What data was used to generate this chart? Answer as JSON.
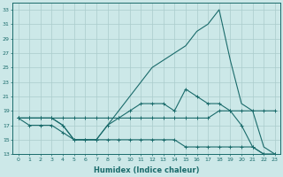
{
  "xlabel": "Humidex (Indice chaleur)",
  "x": [
    0,
    1,
    2,
    3,
    4,
    5,
    6,
    7,
    8,
    9,
    10,
    11,
    12,
    13,
    14,
    15,
    16,
    17,
    18,
    19,
    20,
    21,
    22,
    23
  ],
  "line_max": [
    18,
    18,
    18,
    18,
    17,
    15,
    15,
    15,
    17,
    19,
    21,
    23,
    25,
    26,
    27,
    28,
    30,
    31,
    33,
    26,
    20,
    19,
    14,
    13
  ],
  "line_mid": [
    18,
    18,
    18,
    18,
    17,
    15,
    15,
    15,
    17,
    18,
    19,
    20,
    20,
    20,
    19,
    22,
    21,
    20,
    20,
    19,
    17,
    14,
    13,
    13
  ],
  "line_avg": [
    18,
    18,
    18,
    18,
    18,
    18,
    18,
    18,
    18,
    18,
    18,
    18,
    18,
    18,
    18,
    18,
    18,
    18,
    19,
    19,
    19,
    19,
    19,
    19
  ],
  "line_min": [
    18,
    17,
    17,
    17,
    16,
    15,
    15,
    15,
    15,
    15,
    15,
    15,
    15,
    15,
    15,
    14,
    14,
    14,
    14,
    14,
    14,
    14,
    13,
    13
  ],
  "color": "#1a6b6b",
  "bg_color": "#cce8e8",
  "grid_color": "#aacccc",
  "ylim": [
    13,
    34
  ],
  "yticks": [
    13,
    15,
    17,
    19,
    21,
    23,
    25,
    27,
    29,
    31,
    33
  ],
  "xlim": [
    -0.5,
    23.5
  ],
  "marker_x_mid": [
    0,
    1,
    2,
    3,
    4,
    5,
    6,
    7,
    8,
    9,
    10,
    11,
    12,
    13,
    14,
    15,
    16,
    17,
    18,
    19,
    20,
    21,
    22,
    23
  ],
  "marker_x_avg": [
    0,
    1,
    2,
    3,
    4,
    5,
    6,
    7,
    8,
    9,
    10,
    11,
    12,
    13,
    14,
    15,
    16,
    17,
    18,
    19,
    20,
    21,
    22,
    23
  ]
}
